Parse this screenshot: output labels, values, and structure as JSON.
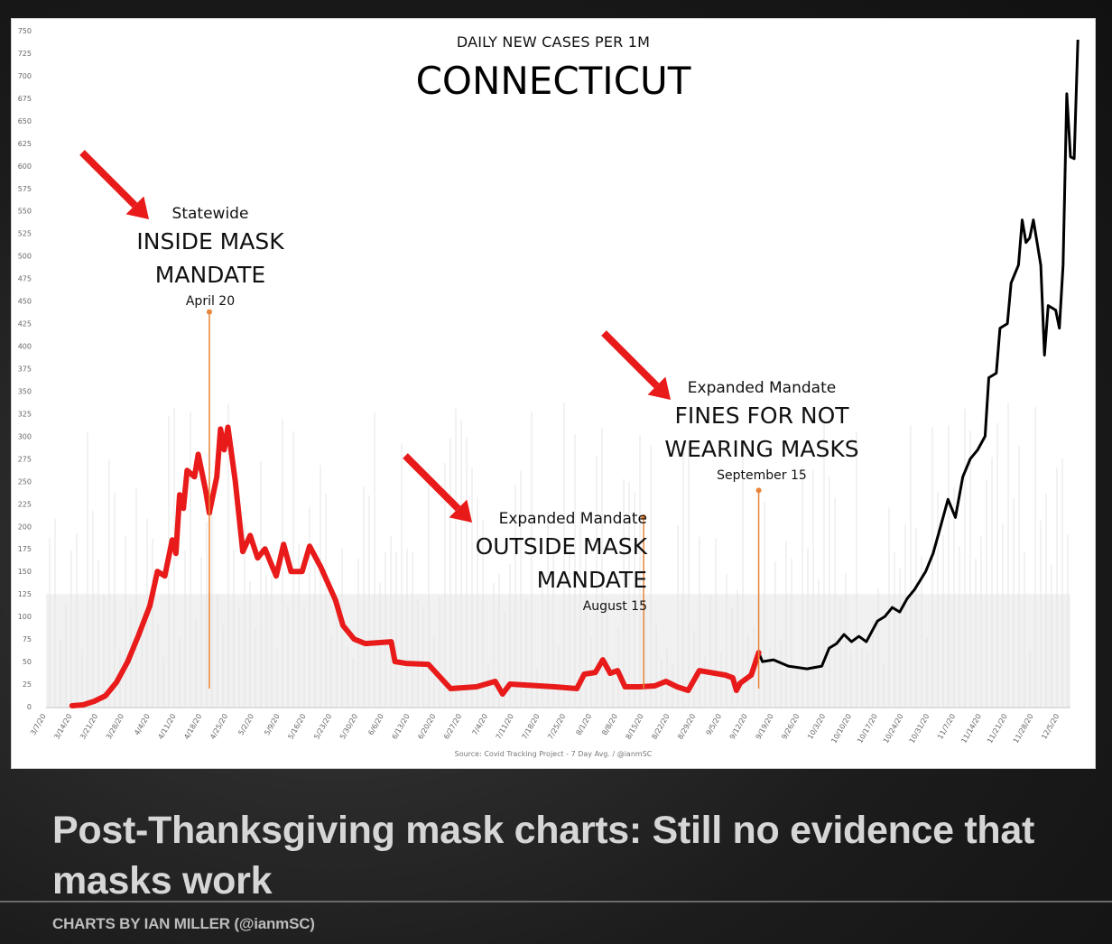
{
  "headline": "Post-Thanksgiving mask charts: Still no evidence that masks work",
  "byline": "CHARTS BY IAN MILLER (@ianmSC)",
  "chart_data": {
    "type": "line",
    "subtitle": "DAILY NEW CASES PER 1M",
    "title": "CONNECTICUT",
    "source": "Source: Covid Tracking Project - 7 Day Avg. / @ianmSC",
    "ylim": [
      0,
      750
    ],
    "yticks": [
      0,
      25,
      50,
      75,
      100,
      125,
      150,
      175,
      200,
      225,
      250,
      275,
      300,
      325,
      350,
      375,
      400,
      425,
      450,
      475,
      500,
      525,
      550,
      575,
      600,
      625,
      650,
      675,
      700,
      725,
      750
    ],
    "x_start": "3/7/20",
    "x_end": "12/8/20",
    "xticks": [
      "3/7/20",
      "3/14/20",
      "3/21/20",
      "3/28/20",
      "4/4/20",
      "4/11/20",
      "4/18/20",
      "4/25/20",
      "5/2/20",
      "5/9/20",
      "5/16/20",
      "5/23/20",
      "5/30/20",
      "6/6/20",
      "6/13/20",
      "6/20/20",
      "6/27/20",
      "7/4/20",
      "7/11/20",
      "7/18/20",
      "7/25/20",
      "8/1/20",
      "8/8/20",
      "8/15/20",
      "8/22/20",
      "8/29/20",
      "9/5/20",
      "9/12/20",
      "9/19/20",
      "9/26/20",
      "10/3/20",
      "10/10/20",
      "10/17/20",
      "10/24/20",
      "10/31/20",
      "11/7/20",
      "11/14/20",
      "11/21/20",
      "11/28/20",
      "12/5/20"
    ],
    "series": [
      {
        "color_mandate_period": "#e81a1a",
        "color_after": "#000000",
        "highlight_end": "9/15/20",
        "points": [
          [
            "3/14/20",
            1
          ],
          [
            "3/17/20",
            2
          ],
          [
            "3/20/20",
            6
          ],
          [
            "3/23/20",
            12
          ],
          [
            "3/26/20",
            27
          ],
          [
            "3/29/20",
            50
          ],
          [
            "4/1/20",
            80
          ],
          [
            "4/4/20",
            112
          ],
          [
            "4/6/20",
            150
          ],
          [
            "4/8/20",
            145
          ],
          [
            "4/10/20",
            185
          ],
          [
            "4/11/20",
            170
          ],
          [
            "4/12/20",
            235
          ],
          [
            "4/13/20",
            220
          ],
          [
            "4/14/20",
            262
          ],
          [
            "4/16/20",
            255
          ],
          [
            "4/17/20",
            280
          ],
          [
            "4/19/20",
            240
          ],
          [
            "4/20/20",
            215
          ],
          [
            "4/22/20",
            255
          ],
          [
            "4/23/20",
            308
          ],
          [
            "4/24/20",
            285
          ],
          [
            "4/25/20",
            310
          ],
          [
            "4/27/20",
            250
          ],
          [
            "4/29/20",
            172
          ],
          [
            "5/1/20",
            190
          ],
          [
            "5/3/20",
            165
          ],
          [
            "5/5/20",
            175
          ],
          [
            "5/8/20",
            145
          ],
          [
            "5/10/20",
            180
          ],
          [
            "5/12/20",
            150
          ],
          [
            "5/15/20",
            150
          ],
          [
            "5/17/20",
            178
          ],
          [
            "5/20/20",
            155
          ],
          [
            "5/24/20",
            118
          ],
          [
            "5/26/20",
            90
          ],
          [
            "5/29/20",
            75
          ],
          [
            "6/1/20",
            70
          ],
          [
            "6/8/20",
            72
          ],
          [
            "6/9/20",
            50
          ],
          [
            "6/12/20",
            48
          ],
          [
            "6/18/20",
            47
          ],
          [
            "6/24/20",
            20
          ],
          [
            "7/1/20",
            22
          ],
          [
            "7/6/20",
            28
          ],
          [
            "7/8/20",
            14
          ],
          [
            "7/10/20",
            25
          ],
          [
            "7/22/20",
            22
          ],
          [
            "7/28/20",
            20
          ],
          [
            "7/30/20",
            36
          ],
          [
            "8/2/20",
            38
          ],
          [
            "8/4/20",
            52
          ],
          [
            "8/6/20",
            37
          ],
          [
            "8/8/20",
            40
          ],
          [
            "8/10/20",
            22
          ],
          [
            "8/14/20",
            22
          ],
          [
            "8/18/20",
            23
          ],
          [
            "8/21/20",
            28
          ],
          [
            "8/24/20",
            22
          ],
          [
            "8/27/20",
            18
          ],
          [
            "8/30/20",
            40
          ],
          [
            "9/6/20",
            35
          ],
          [
            "9/8/20",
            32
          ],
          [
            "9/9/20",
            18
          ],
          [
            "9/10/20",
            26
          ],
          [
            "9/13/20",
            35
          ],
          [
            "9/15/20",
            60
          ],
          [
            "9/16/20",
            50
          ],
          [
            "9/19/20",
            52
          ],
          [
            "9/23/20",
            45
          ],
          [
            "9/28/20",
            42
          ],
          [
            "10/2/20",
            45
          ],
          [
            "10/4/20",
            65
          ],
          [
            "10/6/20",
            70
          ],
          [
            "10/8/20",
            80
          ],
          [
            "10/10/20",
            72
          ],
          [
            "10/12/20",
            78
          ],
          [
            "10/14/20",
            72
          ],
          [
            "10/17/20",
            95
          ],
          [
            "10/19/20",
            100
          ],
          [
            "10/21/20",
            110
          ],
          [
            "10/23/20",
            105
          ],
          [
            "10/25/20",
            120
          ],
          [
            "10/27/20",
            130
          ],
          [
            "10/30/20",
            150
          ],
          [
            "11/1/20",
            170
          ],
          [
            "11/3/20",
            200
          ],
          [
            "11/5/20",
            230
          ],
          [
            "11/7/20",
            210
          ],
          [
            "11/9/20",
            255
          ],
          [
            "11/11/20",
            275
          ],
          [
            "11/13/20",
            285
          ],
          [
            "11/15/20",
            300
          ],
          [
            "11/16/20",
            365
          ],
          [
            "11/18/20",
            370
          ],
          [
            "11/19/20",
            420
          ],
          [
            "11/21/20",
            425
          ],
          [
            "11/22/20",
            470
          ],
          [
            "11/24/20",
            490
          ],
          [
            "11/25/20",
            540
          ],
          [
            "11/26/20",
            515
          ],
          [
            "11/27/20",
            520
          ],
          [
            "11/28/20",
            540
          ],
          [
            "11/30/20",
            490
          ],
          [
            "12/1/20",
            390
          ],
          [
            "12/2/20",
            445
          ],
          [
            "12/4/20",
            440
          ],
          [
            "12/5/20",
            420
          ],
          [
            "12/6/20",
            490
          ],
          [
            "12/7/20",
            680
          ],
          [
            "12/8/20",
            610
          ],
          [
            "12/9/20",
            608
          ],
          [
            "12/10/20",
            740
          ]
        ]
      }
    ],
    "annotations": [
      {
        "pre": "Statewide",
        "main": "INSIDE MASK MANDATE",
        "main_lines": [
          "INSIDE MASK",
          "MANDATE"
        ],
        "date": "April 20",
        "x": "4/20/20",
        "y": 438
      },
      {
        "pre": "Expanded Mandate",
        "main": "OUTSIDE MASK MANDATE",
        "main_lines": [
          "OUTSIDE MASK",
          "MANDATE"
        ],
        "date": "August 15",
        "x": "8/15/20",
        "y": 210
      },
      {
        "pre": "Expanded Mandate",
        "main": "FINES FOR NOT WEARING MASKS",
        "main_lines": [
          "FINES FOR NOT",
          "WEARING MASKS"
        ],
        "date": "September 15",
        "x": "9/15/20",
        "y": 240
      }
    ],
    "marker_color": "#e8853a",
    "arrow_color": "#e81a1a",
    "grid": false
  }
}
